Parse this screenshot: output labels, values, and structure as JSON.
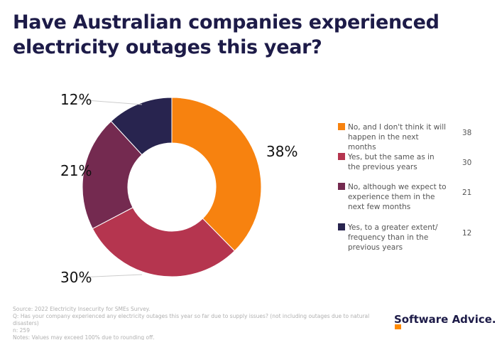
{
  "title": "Have Australian companies experienced electricity outages this year?",
  "chart_data": {
    "type": "pie",
    "donut": true,
    "title": "Have Australian companies experienced electricity outages this year?",
    "categories": [
      "No, and I don't think it will happen in the next months",
      "Yes, but the same as in the previous years",
      "No, although we expect to experience them in the next few months",
      "Yes, to a greater extent/ frequency than in the previous years"
    ],
    "values": [
      38,
      30,
      21,
      12
    ],
    "labels": [
      "38%",
      "30%",
      "21%",
      "12%"
    ],
    "colors": [
      "#f7820f",
      "#b5354f",
      "#742a50",
      "#28244f"
    ],
    "legend_placement": "right"
  },
  "footer": {
    "source": "Source: 2022 Electricity Insecurity for SMEs Survey.",
    "question": "Q: Has your company experienced any electricity outages this year so far due to supply issues? (not including outages due to natural disasters)",
    "n": "n: 259",
    "notes": "Notes: Values may exceed 100% due to rounding off."
  },
  "logo": "Software Advice."
}
